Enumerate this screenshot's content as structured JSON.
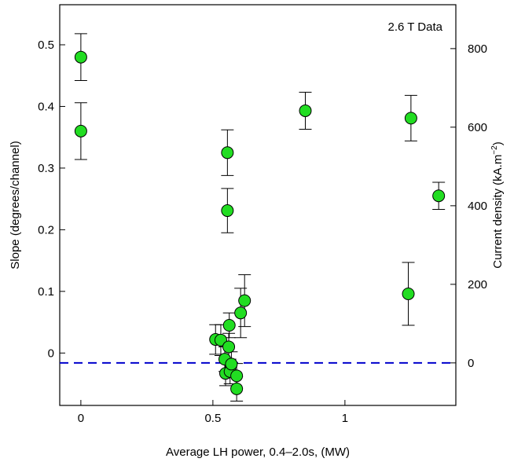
{
  "chart_data": {
    "type": "scatter",
    "xlabel": "Average LH power, 0.4–2.0s, (MW)",
    "ylabel": "Slope (degrees/channel)",
    "y2label_main": "Current density (kA.m",
    "y2label_exp": "−2",
    "y2label_close": ")",
    "annotation": "2.6 T Data",
    "xlim": [
      -0.08,
      1.42
    ],
    "ylim": [
      -0.085,
      0.565
    ],
    "y2lim": [
      -100,
      920
    ],
    "y2_zero_at_y": -0.016,
    "xticks": [
      0,
      0.5,
      1
    ],
    "xticklabels": [
      "0",
      "0.5",
      "1"
    ],
    "yticks": [
      0,
      0.1,
      0.2,
      0.3,
      0.4,
      0.5
    ],
    "yticklabels": [
      "0",
      "0.1",
      "0.2",
      "0.3",
      "0.4",
      "0.5"
    ],
    "y2ticks": [
      0,
      200,
      400,
      600,
      800
    ],
    "y2ticklabels": [
      "0",
      "200",
      "400",
      "600",
      "800"
    ],
    "reference_line": {
      "y": -0.016,
      "color": "#0000cc",
      "style": "dashed"
    },
    "marker_color": "#22dd22",
    "grid": false,
    "points": [
      {
        "x": 0.0,
        "y": 0.48,
        "err": 0.038
      },
      {
        "x": 0.0,
        "y": 0.36,
        "err": 0.046
      },
      {
        "x": 0.51,
        "y": 0.022,
        "err": 0.024
      },
      {
        "x": 0.53,
        "y": 0.021,
        "err": 0.025
      },
      {
        "x": 0.545,
        "y": -0.01,
        "err": 0.02
      },
      {
        "x": 0.548,
        "y": -0.033,
        "err": 0.02
      },
      {
        "x": 0.555,
        "y": 0.325,
        "err": 0.037
      },
      {
        "x": 0.555,
        "y": 0.231,
        "err": 0.036
      },
      {
        "x": 0.56,
        "y": 0.01,
        "err": 0.022
      },
      {
        "x": 0.562,
        "y": 0.045,
        "err": 0.02
      },
      {
        "x": 0.565,
        "y": -0.03,
        "err": 0.02
      },
      {
        "x": 0.57,
        "y": -0.018,
        "err": 0.02
      },
      {
        "x": 0.59,
        "y": -0.037,
        "err": 0.02
      },
      {
        "x": 0.59,
        "y": -0.058,
        "err": 0.02
      },
      {
        "x": 0.605,
        "y": 0.065,
        "err": 0.04
      },
      {
        "x": 0.62,
        "y": 0.085,
        "err": 0.042
      },
      {
        "x": 0.85,
        "y": 0.393,
        "err": 0.03
      },
      {
        "x": 1.24,
        "y": 0.096,
        "err": 0.051
      },
      {
        "x": 1.25,
        "y": 0.381,
        "err": 0.037
      },
      {
        "x": 1.355,
        "y": 0.255,
        "err": 0.022
      }
    ]
  }
}
